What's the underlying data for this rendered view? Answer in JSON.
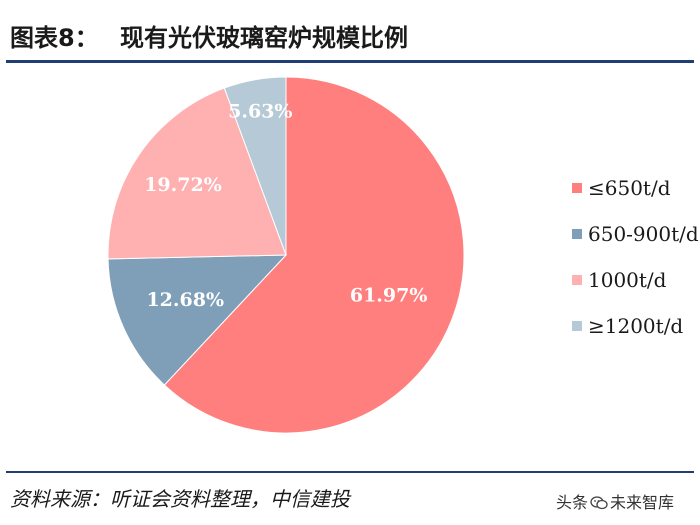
{
  "header": {
    "figure_number": "图表8：",
    "title": "现有光伏玻璃窑炉规模比例"
  },
  "chart_data": {
    "type": "pie",
    "title": "现有光伏玻璃窑炉规模比例",
    "categories": [
      "≤650t/d",
      "650-900t/d",
      "1000t/d",
      "≥1200t/d"
    ],
    "values": [
      61.97,
      12.68,
      19.72,
      5.63
    ],
    "value_labels": [
      "61.97%",
      "12.68%",
      "19.72%",
      "5.63%"
    ],
    "colors": [
      "#ff7f7f",
      "#7f9fb9",
      "#ffb0b1",
      "#b5c9d6"
    ],
    "start": "12 o'clock, clockwise",
    "legend_position": "right"
  },
  "footer": {
    "source": "资料来源：听证会资料整理，中信建投",
    "watermark_text_1": "头条",
    "watermark_text_2": "未来智库",
    "watermark_icon": "wechat-icon"
  }
}
